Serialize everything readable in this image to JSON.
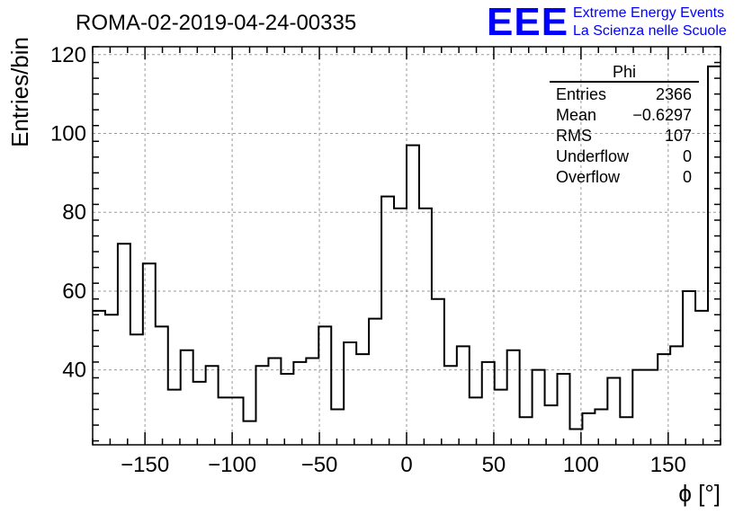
{
  "logo": {
    "text": "EEE",
    "line1": "Extreme Energy Events",
    "line2": "La Scienza nelle Scuole",
    "color": "#0000ff"
  },
  "stats": {
    "title": "Phi",
    "rows": [
      {
        "label": "Entries",
        "value": "2366"
      },
      {
        "label": "Mean",
        "value": "−0.6297"
      },
      {
        "label": "RMS",
        "value": "107"
      },
      {
        "label": "Underflow",
        "value": "0"
      },
      {
        "label": "Overflow",
        "value": "0"
      }
    ]
  },
  "chart_data": {
    "type": "histogram",
    "title": "ROMA-02-2019-04-24-00335",
    "xlabel": "ϕ [°]",
    "ylabel": "Entries/bin",
    "xlim": [
      -180,
      180
    ],
    "ylim": [
      21,
      122
    ],
    "x_ticks": [
      -150,
      -100,
      -50,
      0,
      50,
      100,
      150
    ],
    "x_tick_labels": [
      "−150",
      "−100",
      "−50",
      "0",
      "50",
      "100",
      "150"
    ],
    "y_ticks": [
      40,
      60,
      80,
      100,
      120
    ],
    "y_tick_labels": [
      "40",
      "60",
      "80",
      "100",
      "120"
    ],
    "grid": true,
    "bin_edges_start": -180,
    "bin_width": 7.2,
    "values": [
      55,
      54,
      72,
      49,
      67,
      51,
      35,
      45,
      37,
      41,
      33,
      33,
      27,
      41,
      43,
      39,
      42,
      43,
      51,
      30,
      47,
      44,
      53,
      84,
      81,
      97,
      81,
      58,
      41,
      46,
      33,
      42,
      35,
      45,
      28,
      40,
      31,
      39,
      25,
      29,
      30,
      38,
      28,
      40,
      40,
      44,
      46,
      60,
      55,
      117
    ],
    "line_color": "#000000"
  }
}
